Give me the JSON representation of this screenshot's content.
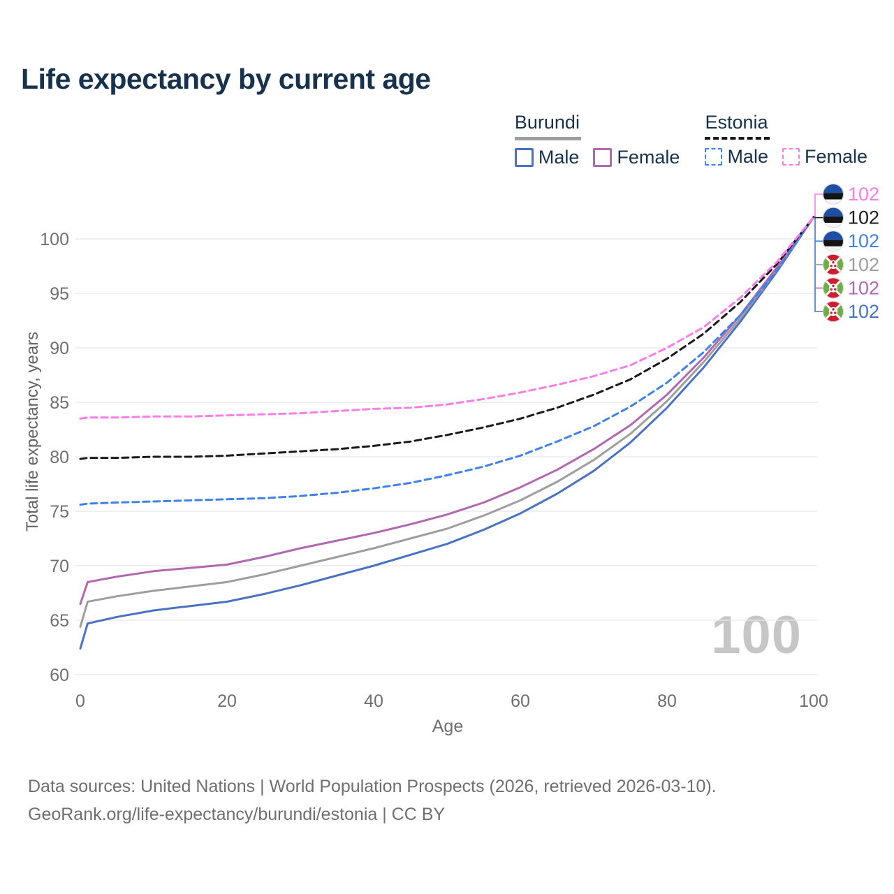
{
  "title": "Life expectancy by current age",
  "legend": {
    "groups": [
      {
        "id": "burundi",
        "label": "Burundi",
        "underline_style": "solid",
        "underline_color": "#9e9e9e",
        "items": [
          {
            "label": "Male",
            "color": "#4a72c4",
            "dash": false
          },
          {
            "label": "Female",
            "color": "#b168b1",
            "dash": false
          }
        ]
      },
      {
        "id": "estonia",
        "label": "Estonia",
        "underline_style": "dashed",
        "underline_color": "#1a1a1a",
        "items": [
          {
            "label": "Male",
            "color": "#3e82e8",
            "dash": true
          },
          {
            "label": "Female",
            "color": "#fa7de8",
            "dash": true
          }
        ]
      }
    ]
  },
  "chart_data": {
    "type": "line",
    "title": "Life expectancy by current age",
    "xlabel": "Age",
    "ylabel": "Total life expectancy, years",
    "xlim": [
      0,
      100
    ],
    "ylim": [
      60,
      102
    ],
    "xticks": [
      0,
      20,
      40,
      60,
      80,
      100
    ],
    "yticks": [
      60,
      65,
      70,
      75,
      80,
      85,
      90,
      95,
      100
    ],
    "grid": "horizontal",
    "watermark": "100",
    "x": [
      0,
      1,
      5,
      10,
      15,
      20,
      25,
      30,
      35,
      40,
      45,
      50,
      55,
      60,
      65,
      70,
      75,
      80,
      85,
      90,
      95,
      100
    ],
    "series": [
      {
        "id": "burundi-male",
        "name": "Burundi Male",
        "country": "burundi",
        "sex": "male",
        "color": "#4a72c4",
        "dash": false,
        "values": [
          62.4,
          64.7,
          65.3,
          65.9,
          66.3,
          66.7,
          67.4,
          68.2,
          69.1,
          70.0,
          71.0,
          72.0,
          73.3,
          74.8,
          76.6,
          78.7,
          81.3,
          84.5,
          88.2,
          92.4,
          97.0,
          102
        ]
      },
      {
        "id": "burundi-total",
        "name": "Burundi Total",
        "country": "burundi",
        "sex": "total",
        "color": "#9e9e9e",
        "dash": false,
        "values": [
          64.4,
          66.7,
          67.2,
          67.7,
          68.1,
          68.5,
          69.2,
          70.0,
          70.8,
          71.6,
          72.5,
          73.4,
          74.6,
          76.0,
          77.7,
          79.7,
          82.1,
          85.1,
          88.7,
          92.7,
          97.2,
          102
        ]
      },
      {
        "id": "burundi-female",
        "name": "Burundi Female",
        "country": "burundi",
        "sex": "female",
        "color": "#b168b1",
        "dash": false,
        "values": [
          66.5,
          68.5,
          69.0,
          69.5,
          69.8,
          70.1,
          70.8,
          71.6,
          72.3,
          73.0,
          73.8,
          74.7,
          75.8,
          77.2,
          78.8,
          80.7,
          82.9,
          85.7,
          89.1,
          93.0,
          97.4,
          102
        ]
      },
      {
        "id": "estonia-male",
        "name": "Estonia Male",
        "country": "estonia",
        "sex": "male",
        "color": "#3e82e8",
        "dash": true,
        "values": [
          75.6,
          75.7,
          75.8,
          75.9,
          76.0,
          76.1,
          76.2,
          76.4,
          76.7,
          77.1,
          77.6,
          78.3,
          79.1,
          80.1,
          81.4,
          82.8,
          84.6,
          86.8,
          89.6,
          93.0,
          97.1,
          102
        ]
      },
      {
        "id": "estonia-total",
        "name": "Estonia Total",
        "country": "estonia",
        "sex": "total",
        "color": "#1a1a1a",
        "dash": true,
        "values": [
          79.8,
          79.9,
          79.9,
          80.0,
          80.0,
          80.1,
          80.3,
          80.5,
          80.7,
          81.0,
          81.4,
          82.0,
          82.7,
          83.5,
          84.5,
          85.7,
          87.1,
          89.0,
          91.3,
          94.2,
          97.7,
          102
        ]
      },
      {
        "id": "estonia-female",
        "name": "Estonia Female",
        "country": "estonia",
        "sex": "female",
        "color": "#fa7de8",
        "dash": true,
        "values": [
          83.5,
          83.6,
          83.6,
          83.7,
          83.7,
          83.8,
          83.9,
          84.0,
          84.2,
          84.4,
          84.5,
          84.8,
          85.3,
          85.9,
          86.6,
          87.4,
          88.4,
          90.0,
          91.9,
          94.6,
          97.9,
          102
        ]
      }
    ],
    "right_labels": [
      {
        "series": "estonia-female",
        "country": "estonia",
        "value": "102",
        "color": "#fa7de8"
      },
      {
        "series": "estonia-total",
        "country": "estonia",
        "value": "102",
        "color": "#1a1a1a"
      },
      {
        "series": "estonia-male",
        "country": "estonia",
        "value": "102",
        "color": "#3e82e8"
      },
      {
        "series": "burundi-total",
        "country": "burundi",
        "value": "102",
        "color": "#9e9e9e"
      },
      {
        "series": "burundi-female",
        "country": "burundi",
        "value": "102",
        "color": "#b168b1"
      },
      {
        "series": "burundi-male",
        "country": "burundi",
        "value": "102",
        "color": "#4a72c4"
      }
    ],
    "flag_colors": {
      "estonia": {
        "blue": "#1f4fa5",
        "black": "#141414",
        "white": "#f4f4f4"
      },
      "burundi": {
        "red": "#d01c2e",
        "green": "#6fae44",
        "white": "#ffffff"
      }
    }
  },
  "footer": {
    "line1": "Data sources: United Nations | World Population Prospects (2026, retrieved 2026-03-10).",
    "line2": "GeoRank.org/life-expectancy/burundi/estonia | CC BY"
  }
}
